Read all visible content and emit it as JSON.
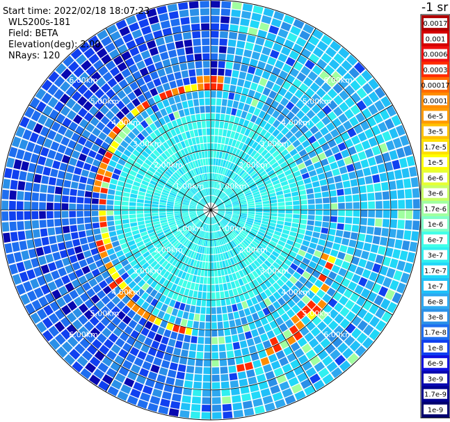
{
  "header": {
    "start_time": "Start time: 2022/02/18 18:07:23",
    "instrument": "WLS200s-181",
    "field": "Field: BETA",
    "elevation": "Elevation(deg): 2.00",
    "nrays": "NRays: 120"
  },
  "unit_label": "-1 sr",
  "colorbar": {
    "labels": [
      "0.0017",
      "0.001",
      "0.0006",
      "0.0003",
      "0.00017",
      "0.0001",
      "6e-5",
      "3e-5",
      "1.7e-5",
      "1e-5",
      "6e-6",
      "3e-6",
      "1.7e-6",
      "1e-6",
      "6e-7",
      "3e-7",
      "1.7e-7",
      "1e-7",
      "6e-8",
      "3e-8",
      "1.7e-8",
      "1e-8",
      "6e-9",
      "3e-9",
      "1.7e-9",
      "1e-9"
    ],
    "colors": [
      "#b00000",
      "#d40000",
      "#f01010",
      "#ff2a00",
      "#ff6a00",
      "#ff8c00",
      "#ff9a00",
      "#ffc000",
      "#ffe000",
      "#ffff00",
      "#e6ff33",
      "#c8ff66",
      "#a0ffa0",
      "#80ffc8",
      "#40ffe8",
      "#30f0f0",
      "#20d8f8",
      "#20c0f8",
      "#2ea8f0",
      "#2a90e8",
      "#1e6ef0",
      "#1040f0",
      "#1010e0",
      "#0808b0",
      "#000090",
      "#000070"
    ]
  },
  "chart_data": {
    "type": "heatmap",
    "projection": "polar (PPI)",
    "field": "BETA",
    "unit": "sr-1",
    "elevation_deg": 2.0,
    "n_rays": 120,
    "range_rings_km": [
      1,
      2,
      3,
      4,
      5,
      6
    ],
    "range_ring_labels": [
      "1.00km",
      "2.00km",
      "3.00km",
      "4.00km",
      "5.00km",
      "6.00km"
    ],
    "max_range_km": 7.0,
    "background_level_west": "1e-8 to 3e-8",
    "background_level_east": "1e-7 to 6e-7",
    "notes_visible": "high values (1e-5 to 1e-4) along arcs near 4 km in west sector and near 5 km in south-east sector"
  }
}
